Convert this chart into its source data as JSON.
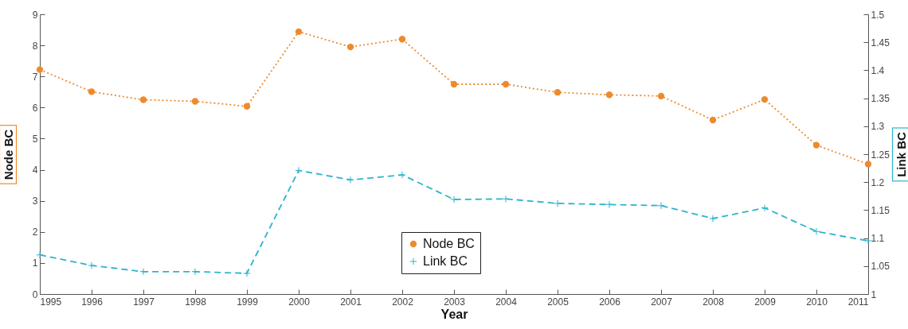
{
  "chart_data": {
    "type": "line",
    "xlabel": "Year",
    "ylabel": "Node BC",
    "y2label": "Link BC",
    "x": [
      1995,
      1996,
      1997,
      1998,
      1999,
      2000,
      2001,
      2002,
      2003,
      2004,
      2005,
      2006,
      2007,
      2008,
      2009,
      2010,
      2011
    ],
    "series": [
      {
        "name": "Node BC",
        "color": "#ee8a2c",
        "marker": "circle",
        "line_style": "dotted",
        "values": [
          7.22,
          6.51,
          6.25,
          6.2,
          6.04,
          8.44,
          7.95,
          8.2,
          6.75,
          6.75,
          6.49,
          6.41,
          6.37,
          5.6,
          6.26,
          4.79,
          4.18
        ]
      },
      {
        "name": "Link BC",
        "color": "#2db4cc",
        "marker": "cross",
        "line_style": "dashed",
        "axis": "y2",
        "values": [
          1.07,
          1.051,
          1.04,
          1.04,
          1.037,
          1.221,
          1.204,
          1.213,
          1.169,
          1.17,
          1.162,
          1.16,
          1.158,
          1.135,
          1.154,
          1.112,
          1.095
        ]
      }
    ],
    "xlim": [
      1995,
      2011
    ],
    "xticks": [
      1995,
      1996,
      1997,
      1998,
      1999,
      2000,
      2001,
      2002,
      2003,
      2004,
      2005,
      2006,
      2007,
      2008,
      2009,
      2010,
      2011
    ],
    "ylim": [
      0,
      9
    ],
    "yticks": [
      0,
      1,
      2,
      3,
      4,
      5,
      6,
      7,
      8,
      9
    ],
    "y2lim": [
      1,
      1.5
    ],
    "y2ticks": [
      1,
      1.05,
      1.1,
      1.15,
      1.2,
      1.25,
      1.3,
      1.35,
      1.4,
      1.45,
      1.5
    ],
    "grid": false,
    "legend": "bottom"
  }
}
